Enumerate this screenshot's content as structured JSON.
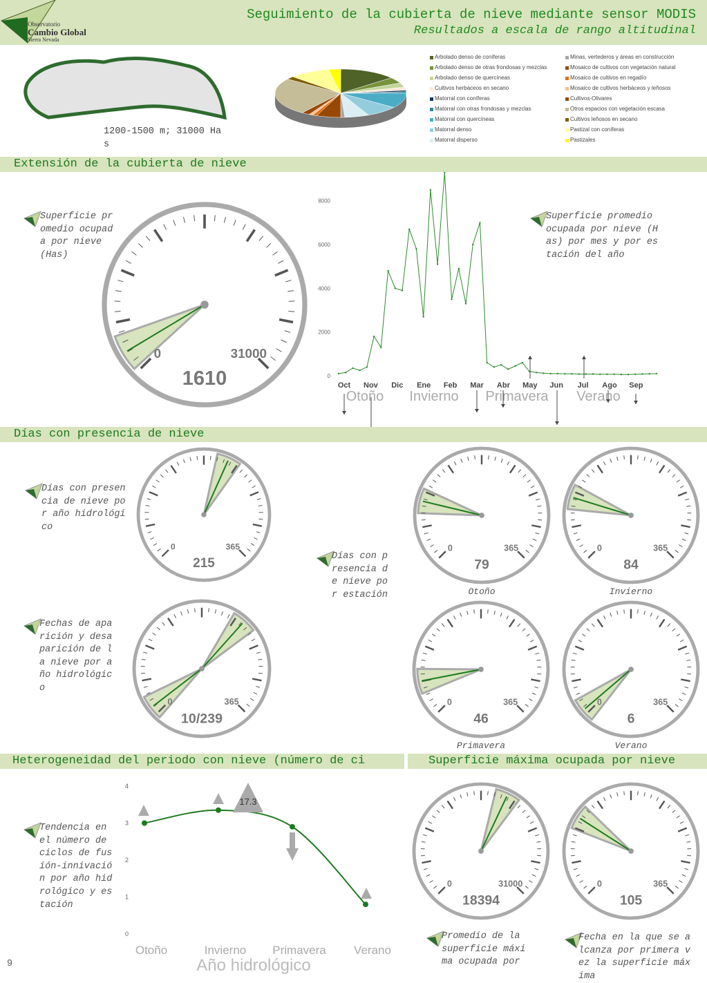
{
  "header": {
    "logo": [
      "Observatorio",
      "Cambio Global",
      "Sierra Nevada"
    ],
    "title": "Seguimiento de la cubierta de nieve mediante sensor MODIS",
    "subtitle": "Resultados a escala de rango altitudinal"
  },
  "map_caption": "1200-1500 m; 31000 Has",
  "sections": [
    "Extensión de la cubierta de nieve",
    "Días con presencia de nieve",
    "Heterogeneidad del periodo con nieve (número de ci",
    "Superficie máxima ocupada por nieve"
  ],
  "notes": [
    "Superficie promedio ocupada por nieve (Has)",
    "Superficie promedio ocupada por nieve (Has) por mes y por estación del año",
    "Días con presencia de nieve por año hidrológico",
    "Días con presencia de nieve por estación",
    "Fechas de aparición y desaparición de la nieve por año hidrológico",
    "Tendencia en el número de ciclos de fusión-innivación por año hidrológico y estación",
    "Promedio de la superficie máxima ocupada por",
    "Fecha en la que se alcanza por primera vez la superficie máxima"
  ],
  "page_number": "9",
  "chart_data": [
    {
      "type": "pie",
      "categories": [
        "Arbolado denso de coníferas",
        "Arbolado denso de otras frondosas y mezclas",
        "Arbolado denso de quercíneas",
        "Cultivos herbáceos en secano",
        "Matorral con coníferas",
        "Matorral con otras frondosas y mezclas",
        "Matorral con quercíneas",
        "Matorral denso",
        "Matorral disperso",
        "Minas, vertederos y áreas en construcción",
        "Mosaico de cultivos con vegetación natural",
        "Mosaico de cultivos en regadío",
        "Mosaico de cultivos herbáceos y leñosos",
        "Cultivos-Olivares",
        "Otros espacios con vegetación escasa",
        "Cultivos  leñosos en secano",
        "Pastizal con coníferas",
        "Pastizales"
      ],
      "values": [
        14,
        4,
        3,
        2,
        1,
        1,
        10,
        8,
        6,
        1,
        6,
        1,
        1,
        2,
        25,
        2,
        10,
        3
      ],
      "colors": [
        "#4f6228",
        "#77933c",
        "#c3d69b",
        "#fde9d9",
        "#17375e",
        "#31849b",
        "#4bacc6",
        "#93cddd",
        "#dbeef4",
        "#a6a6a6",
        "#974806",
        "#e46c0a",
        "#fac090",
        "#984807",
        "#c4bd97",
        "#7f6000",
        "#ffff99",
        "#ffff00"
      ]
    },
    {
      "type": "line",
      "xtick_labels": [
        "Oct",
        "Nov",
        "Dic",
        "Ene",
        "Feb",
        "Mar",
        "Abr",
        "May",
        "Jun",
        "Jul",
        "Ago",
        "Sep"
      ],
      "seasons": [
        "Otoño",
        "Invierno",
        "Primavera",
        "Verano"
      ],
      "values": [
        100,
        150,
        350,
        250,
        400,
        1800,
        1300,
        4800,
        4000,
        3900,
        6700,
        5800,
        2700,
        8500,
        5100,
        9300,
        3500,
        4900,
        3300,
        6000,
        7000,
        600,
        400,
        500,
        300,
        450,
        600,
        200,
        150,
        120,
        100,
        100,
        90,
        90,
        80,
        80,
        80,
        70,
        70,
        70,
        60,
        60,
        70,
        80,
        90,
        100
      ],
      "color": "#2e8b2e",
      "ylim": [
        0,
        9600
      ],
      "yticks": [
        0,
        2000,
        4000,
        6000,
        8000
      ],
      "grid": false
    },
    {
      "type": "gauge",
      "value": 1610,
      "min": 0,
      "max": 31000
    },
    {
      "type": "gauge",
      "value": 215,
      "min": 0,
      "max": 365
    },
    {
      "type": "gauge",
      "values": [
        10,
        239
      ],
      "value_label": "10/239",
      "min": 0,
      "max": 365
    },
    {
      "type": "gauge",
      "value": 79,
      "min": 0,
      "max": 365,
      "caption": "Otoño"
    },
    {
      "type": "gauge",
      "value": 84,
      "min": 0,
      "max": 365,
      "caption": "Invierno"
    },
    {
      "type": "gauge",
      "value": 46,
      "min": 0,
      "max": 365,
      "caption": "Primavera"
    },
    {
      "type": "gauge",
      "value": 6,
      "min": 0,
      "max": 365,
      "caption": "Verano"
    },
    {
      "type": "line",
      "categories": [
        "Otoño",
        "Invierno",
        "Primavera",
        "Verano"
      ],
      "values": [
        3.0,
        3.35,
        2.9,
        0.8
      ],
      "color": "#1e7a1e",
      "ylim": [
        0,
        4
      ],
      "yticks": [
        0,
        1,
        2,
        3,
        4
      ],
      "x_label": "Año hidrológico",
      "annotation": "17.3"
    },
    {
      "type": "gauge",
      "value": 18394,
      "min": 0,
      "max": 31000
    },
    {
      "type": "gauge",
      "value": 105,
      "min": 0,
      "max": 365
    }
  ]
}
